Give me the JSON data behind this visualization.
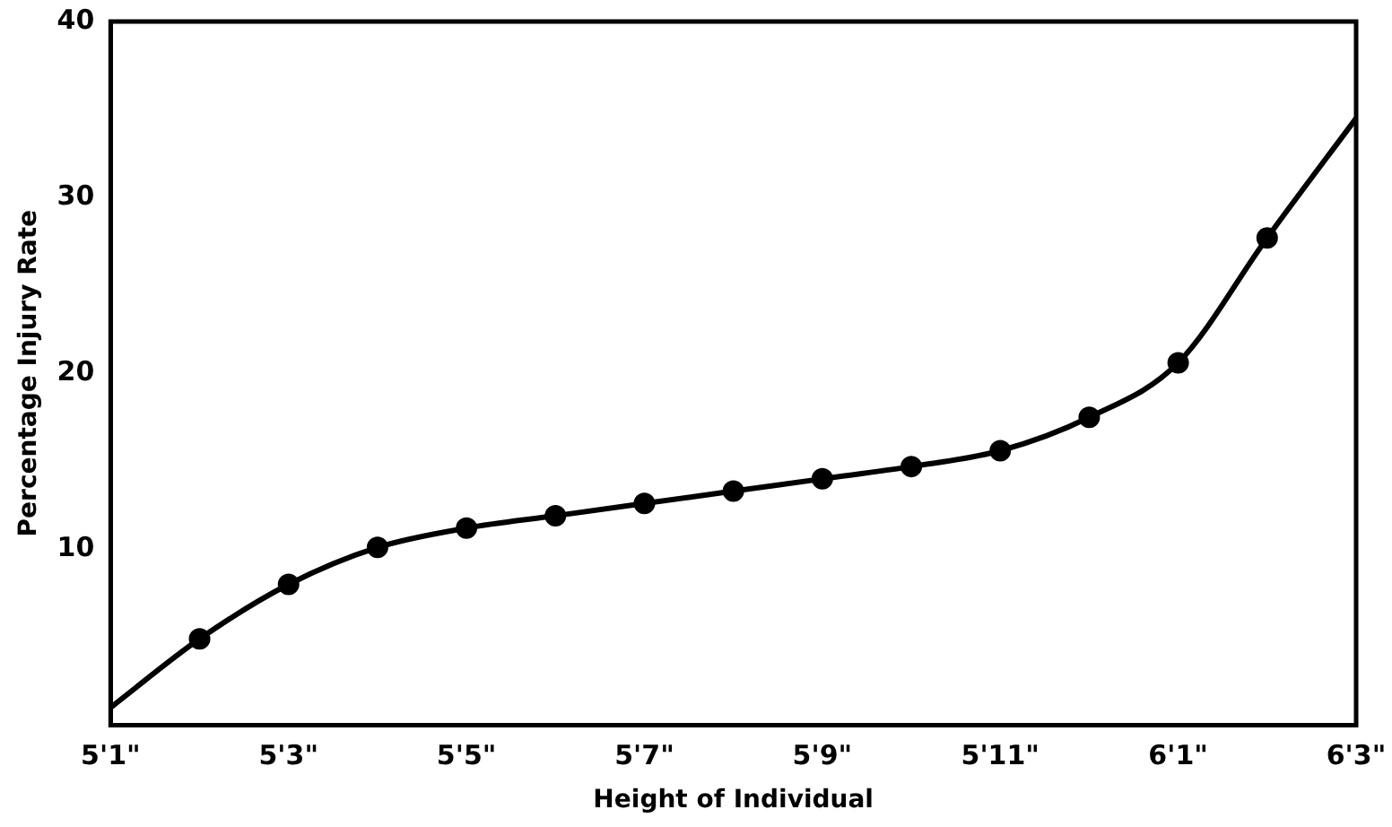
{
  "chart_data": {
    "type": "line",
    "xlabel": "Height of Individual",
    "ylabel": "Percentage Injury Rate",
    "categories": [
      "5'1\"",
      null,
      "5'3\"",
      null,
      "5'5\"",
      null,
      "5'7\"",
      null,
      "5'9\"",
      null,
      "5'11\"",
      null,
      "6'1\"",
      null,
      "6'3\""
    ],
    "ylim": [
      0,
      40
    ],
    "yticks": [
      10,
      20,
      30,
      40
    ],
    "grid": false,
    "legend": false,
    "series": [
      {
        "color": "#000000",
        "marker": "none",
        "line_style": "solid",
        "values": [
          1,
          4.9,
          8,
          10.1,
          11.2,
          11.9,
          12.6,
          13.3,
          14,
          14.7,
          15.6,
          17.5,
          20.6,
          27.7,
          34.5
        ]
      },
      {
        "type": "scatter",
        "color": "#000000",
        "marker": "circle",
        "values": [
          null,
          4.9,
          8,
          10.1,
          11.2,
          11.9,
          12.6,
          13.3,
          14,
          14.7,
          15.6,
          17.5,
          20.6,
          27.7,
          null
        ]
      }
    ]
  }
}
